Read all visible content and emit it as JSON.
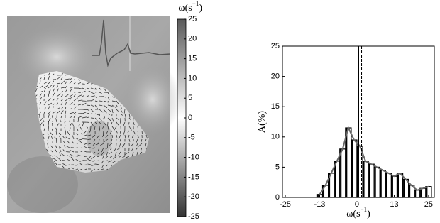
{
  "chart_data": [
    {
      "type": "colorbar",
      "label": {
        "base": "ω(s",
        "sup": "−1",
        "close": ")"
      },
      "ylim": [
        -25,
        25
      ],
      "yticks": [
        -25,
        -20,
        -15,
        -10,
        -5,
        0,
        5,
        10,
        15,
        20,
        25
      ],
      "colors": [
        "#333333",
        "#ffffff",
        "#5a5a5a"
      ]
    },
    {
      "type": "histogram",
      "xlabel": {
        "base": "ω(s",
        "sup": "−1",
        "close": ")"
      },
      "ylabel": "A(%)",
      "bins": [
        -14,
        -12,
        -10,
        -8,
        -6,
        -4,
        -2,
        0,
        2,
        4,
        6,
        8,
        10,
        12,
        14,
        16,
        18,
        20,
        22,
        24,
        26
      ],
      "counts": [
        0.5,
        2,
        4,
        6,
        8,
        11.5,
        9.5,
        8.5,
        6,
        5.5,
        5,
        4.5,
        4,
        3.5,
        4,
        3,
        2,
        1.2,
        1.5,
        1.8
      ],
      "color": "#666666",
      "xlim": [
        -26,
        27
      ],
      "ylim": [
        0,
        25
      ],
      "xticks": [
        -25,
        -13,
        0,
        13,
        25
      ],
      "yticks": [
        0,
        5,
        10,
        15,
        20,
        25
      ],
      "vlines": [
        {
          "value": 0.5,
          "style": "solid"
        },
        {
          "value": 1.5,
          "style": "dashed"
        }
      ]
    }
  ]
}
